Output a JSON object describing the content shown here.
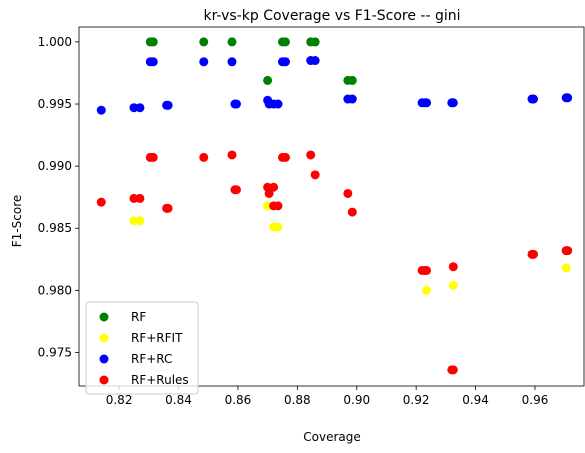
{
  "chart_data": {
    "type": "scatter",
    "title": "kr-vs-kp Coverage vs F1-Score -- gini",
    "xlabel": "Coverage",
    "ylabel": "F1-Score",
    "xlim": [
      0.8065,
      0.9765
    ],
    "ylim": [
      0.9723,
      1.0012
    ],
    "xticks": [
      "0.82",
      "0.84",
      "0.86",
      "0.88",
      "0.90",
      "0.92",
      "0.94",
      "0.96"
    ],
    "xtick_values": [
      0.82,
      0.84,
      0.86,
      0.88,
      0.9,
      0.92,
      0.94,
      0.96
    ],
    "yticks": [
      "0.975",
      "0.980",
      "0.985",
      "0.990",
      "0.995",
      "1.000"
    ],
    "ytick_values": [
      0.975,
      0.98,
      0.985,
      0.99,
      0.995,
      1.0
    ],
    "legend_position": "lower-left",
    "grid": false,
    "series": [
      {
        "name": "RF",
        "color": "#008000",
        "points": [
          [
            0.8305,
            1.0
          ],
          [
            0.8315,
            1.0
          ],
          [
            0.8485,
            1.0
          ],
          [
            0.858,
            1.0
          ],
          [
            0.875,
            1.0
          ],
          [
            0.876,
            1.0
          ],
          [
            0.8845,
            1.0
          ],
          [
            0.886,
            1.0
          ],
          [
            0.87,
            0.9969
          ],
          [
            0.897,
            0.9969
          ],
          [
            0.8985,
            0.9969
          ]
        ]
      },
      {
        "name": "RF+RFIT",
        "color": "#ffff00",
        "points": [
          [
            0.825,
            0.9856
          ],
          [
            0.827,
            0.9856
          ],
          [
            0.87,
            0.9868
          ],
          [
            0.872,
            0.9851
          ],
          [
            0.8735,
            0.9851
          ],
          [
            0.9235,
            0.98
          ],
          [
            0.9325,
            0.9804
          ],
          [
            0.9705,
            0.9818
          ]
        ]
      },
      {
        "name": "RF+RC",
        "color": "#0000ff",
        "points": [
          [
            0.814,
            0.9945
          ],
          [
            0.825,
            0.9947
          ],
          [
            0.827,
            0.9947
          ],
          [
            0.8305,
            0.9984
          ],
          [
            0.8315,
            0.9984
          ],
          [
            0.836,
            0.9949
          ],
          [
            0.8365,
            0.9949
          ],
          [
            0.8485,
            0.9984
          ],
          [
            0.858,
            0.9984
          ],
          [
            0.859,
            0.995
          ],
          [
            0.8595,
            0.995
          ],
          [
            0.87,
            0.9953
          ],
          [
            0.8705,
            0.995
          ],
          [
            0.872,
            0.995
          ],
          [
            0.8735,
            0.995
          ],
          [
            0.875,
            0.9984
          ],
          [
            0.876,
            0.9984
          ],
          [
            0.8845,
            0.9985
          ],
          [
            0.886,
            0.9985
          ],
          [
            0.897,
            0.9954
          ],
          [
            0.8985,
            0.9954
          ],
          [
            0.922,
            0.9951
          ],
          [
            0.923,
            0.9951
          ],
          [
            0.9235,
            0.9951
          ],
          [
            0.932,
            0.9951
          ],
          [
            0.9325,
            0.9951
          ],
          [
            0.959,
            0.9954
          ],
          [
            0.9595,
            0.9954
          ],
          [
            0.9705,
            0.9955
          ],
          [
            0.971,
            0.9955
          ]
        ]
      },
      {
        "name": "RF+Rules",
        "color": "#ff0000",
        "points": [
          [
            0.814,
            0.9871
          ],
          [
            0.825,
            0.9874
          ],
          [
            0.827,
            0.9874
          ],
          [
            0.8305,
            0.9907
          ],
          [
            0.8315,
            0.9907
          ],
          [
            0.836,
            0.9866
          ],
          [
            0.8365,
            0.9866
          ],
          [
            0.8485,
            0.9907
          ],
          [
            0.858,
            0.9909
          ],
          [
            0.859,
            0.9881
          ],
          [
            0.8595,
            0.9881
          ],
          [
            0.87,
            0.9883
          ],
          [
            0.8705,
            0.9878
          ],
          [
            0.872,
            0.9883
          ],
          [
            0.872,
            0.9868
          ],
          [
            0.8735,
            0.9868
          ],
          [
            0.875,
            0.9907
          ],
          [
            0.876,
            0.9907
          ],
          [
            0.8845,
            0.9909
          ],
          [
            0.886,
            0.9893
          ],
          [
            0.897,
            0.9878
          ],
          [
            0.8985,
            0.9863
          ],
          [
            0.922,
            0.9816
          ],
          [
            0.923,
            0.9816
          ],
          [
            0.9235,
            0.9816
          ],
          [
            0.932,
            0.9736
          ],
          [
            0.9325,
            0.9736
          ],
          [
            0.9325,
            0.9819
          ],
          [
            0.959,
            0.9829
          ],
          [
            0.9595,
            0.9829
          ],
          [
            0.9705,
            0.9832
          ],
          [
            0.971,
            0.9832
          ]
        ]
      }
    ]
  }
}
